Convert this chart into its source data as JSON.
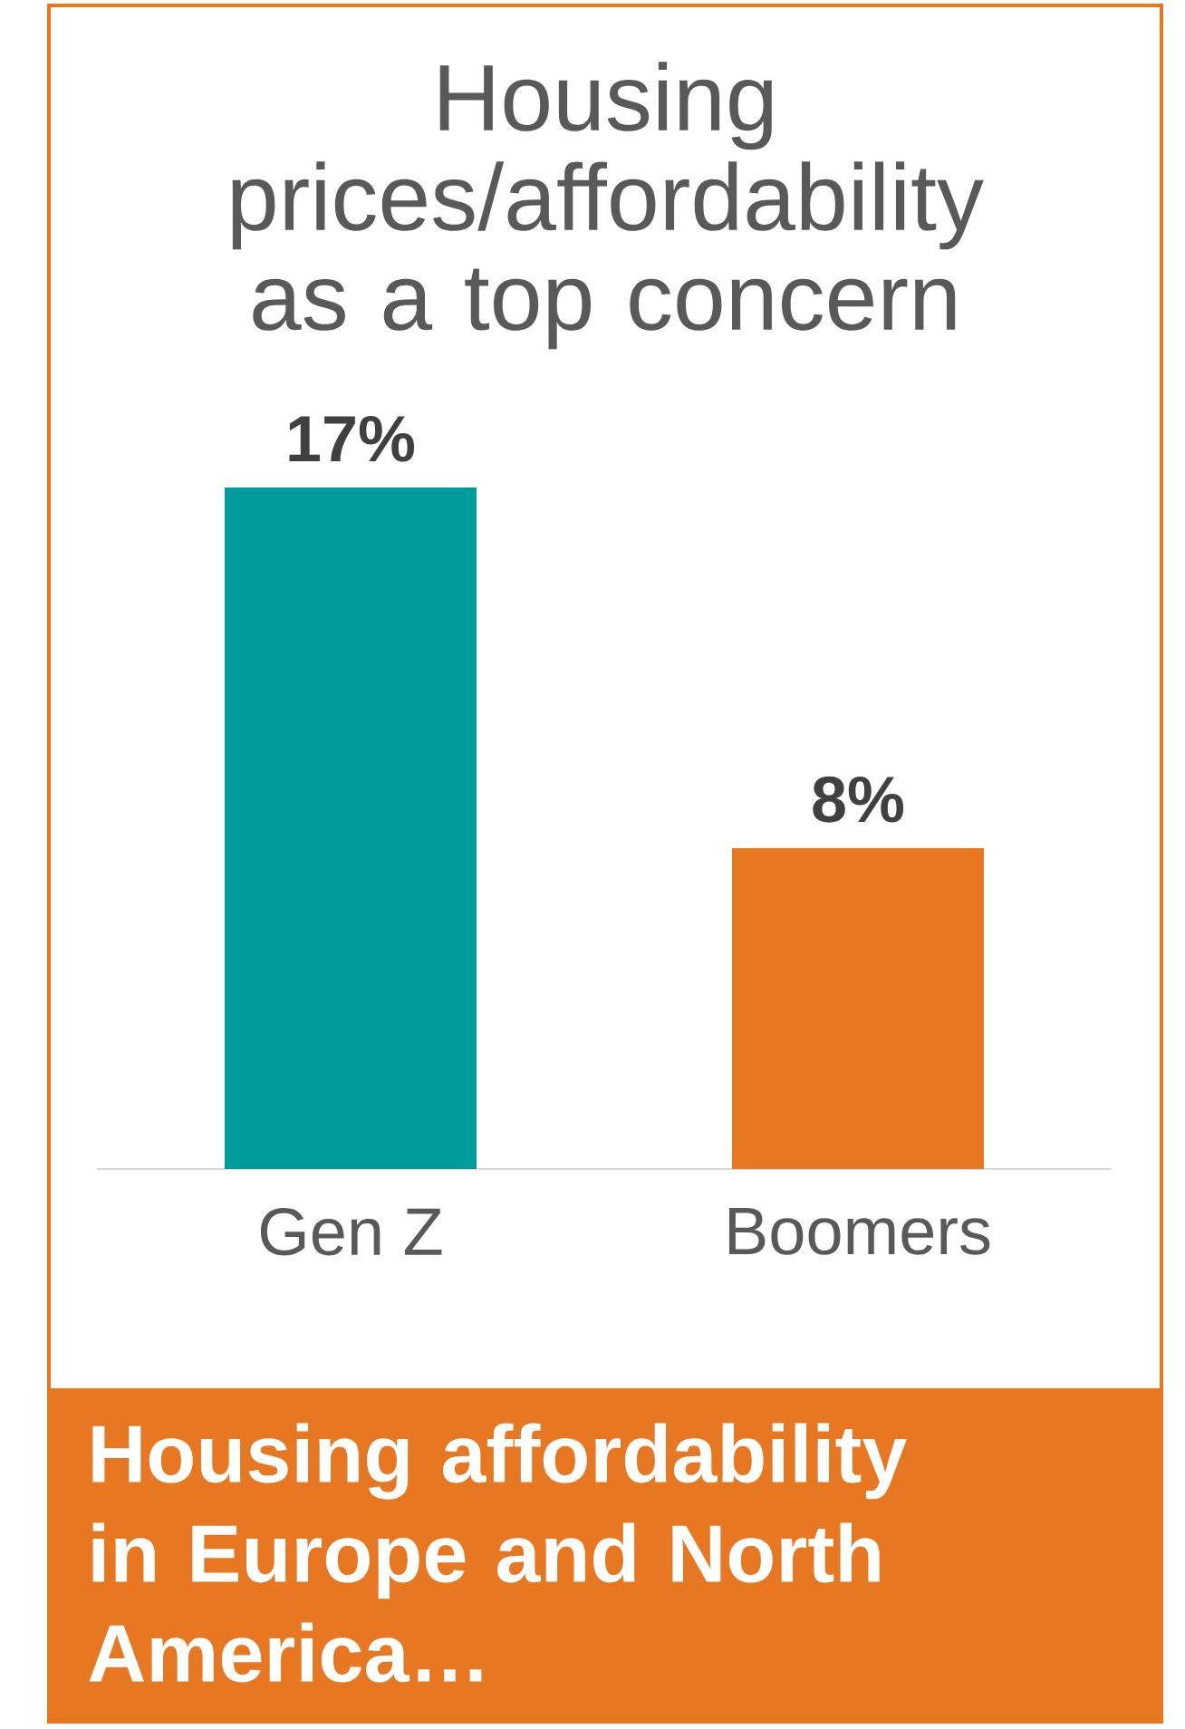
{
  "chart_data": {
    "type": "bar",
    "title": "Housing prices/affordability as a top concern",
    "categories": [
      "Gen Z",
      "Boomers"
    ],
    "values": [
      17,
      8
    ],
    "value_labels": [
      "17%",
      "8%"
    ],
    "colors": [
      "#009b9b",
      "#e87722"
    ],
    "annotations": [
      "Housing affordability in Europe and North America…"
    ]
  }
}
